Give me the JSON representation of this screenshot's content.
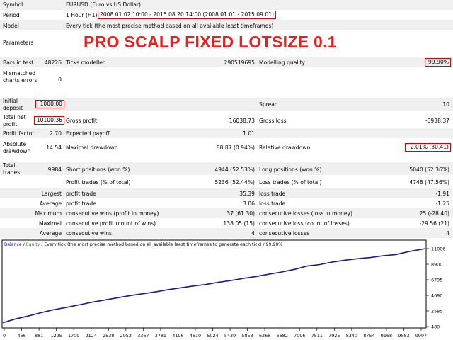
{
  "header": {
    "symbol_label": "Symbol",
    "symbol_value": "EURUSD (Euro vs US Dollar)",
    "period_label": "Period",
    "period_value": "1 Hour (H1)",
    "period_range": "2008.01.02 10:00 - 2015.08.20 14:00 (2008.01.01 - 2015.09.01)",
    "model_label": "Model",
    "model_value": "Every tick (the most precise method based on all available least timeframes)",
    "parameters_label": "Parameters",
    "banner": "PRO SCALP FIXED LOTSIZE 0.1"
  },
  "stats": {
    "bars_label": "Bars in test",
    "bars_value": "48226",
    "ticks_label": "Ticks modelled",
    "ticks_value": "290519695",
    "quality_label": "Modelling quality",
    "quality_value": "99.90%",
    "mismatch_label": "Mismatched charts errors",
    "mismatch_value": "0",
    "deposit_label": "Initial deposit",
    "deposit_value": "1000.00",
    "spread_label": "Spread",
    "spread_value": "10",
    "net_label": "Total net profit",
    "net_value": "10100.36",
    "gross_profit_label": "Gross profit",
    "gross_profit_value": "16038.73",
    "gross_loss_label": "Gross loss",
    "gross_loss_value": "-5938.37",
    "pf_label": "Profit factor",
    "pf_value": "2.70",
    "payoff_label": "Expected payoff",
    "payoff_value": "1.01",
    "abs_dd_label": "Absolute drawdown",
    "abs_dd_value": "14.54",
    "max_dd_label": "Maximal drawdown",
    "max_dd_value": "88.87 (0.94%)",
    "rel_dd_label": "Relative drawdown",
    "rel_dd_value": "2.01% (30.41)",
    "trades_label": "Total trades",
    "trades_value": "9984",
    "short_label": "Short positions (won %)",
    "short_value": "4944 (52.53%)",
    "long_label": "Long positions (won %)",
    "long_value": "5040 (52.36%)",
    "profit_trades_label": "Profit trades (% of total)",
    "profit_trades_value": "5236 (52.44%)",
    "loss_trades_label": "Loss trades (% of total)",
    "loss_trades_value": "4748 (47.56%)",
    "largest_label": "Largest",
    "largest_profit_label": "profit trade",
    "largest_profit_value": "35.39",
    "largest_loss_label": "loss trade",
    "largest_loss_value": "-1.91",
    "average_label": "Average",
    "average_profit_label": "profit trade",
    "average_profit_value": "3.06",
    "average_loss_label": "loss trade",
    "average_loss_value": "-1.25",
    "maximum_label": "Maximum",
    "max_wins_label": "consecutive wins (profit in money)",
    "max_wins_value": "37 (61.30)",
    "max_losses_label": "consecutive losses (loss in money)",
    "max_losses_value": "25 (-28.40)",
    "maximal_label": "Maximal",
    "maximal_profit_label": "consecutive profit (count of wins)",
    "maximal_profit_value": "138.05 (15)",
    "maximal_loss_label": "consecutive loss (count of losses)",
    "maximal_loss_value": "-29.56 (21)",
    "avg2_label": "Average",
    "avg_wins_label": "consecutive wins",
    "avg_wins_value": "4",
    "avg_losses_label": "consecutive losses",
    "avg_losses_value": "4"
  },
  "chart_data": {
    "type": "line",
    "legend": {
      "balance": "Balance",
      "sep": " / ",
      "equity": "Equity",
      "desc": " / Every tick (the most precise method based on all available least timeframes to generate each tick)",
      "quality": " / 99.90%"
    },
    "x_ticks": [
      "0",
      "466",
      "881",
      "1295",
      "1709",
      "2124",
      "2538",
      "2952",
      "3367",
      "3781",
      "4196",
      "4610",
      "5024",
      "5439",
      "5853",
      "6268",
      "6682",
      "7096",
      "7511",
      "7925",
      "8340",
      "8754",
      "9168",
      "9583",
      "9997"
    ],
    "y_ticks": [
      "11006",
      "8900",
      "6795",
      "4690",
      "2585",
      "480"
    ],
    "ylim": [
      480,
      11006
    ],
    "xlim": [
      0,
      9997
    ],
    "series": [
      {
        "name": "Balance",
        "color": "#1a1a8a",
        "x": [
          0,
          300,
          600,
          900,
          1200,
          1500,
          1800,
          2100,
          2400,
          2700,
          3000,
          3300,
          3600,
          3900,
          4200,
          4500,
          4800,
          5100,
          5400,
          5700,
          6000,
          6300,
          6600,
          6900,
          7200,
          7500,
          7800,
          8100,
          8400,
          8700,
          9000,
          9300,
          9600,
          9997
        ],
        "y": [
          1000,
          1500,
          1900,
          2350,
          2750,
          3050,
          3400,
          3750,
          4050,
          4350,
          4650,
          4900,
          5150,
          5450,
          5700,
          5950,
          6150,
          6450,
          6700,
          7000,
          7250,
          7550,
          7850,
          8200,
          8650,
          8850,
          9200,
          9450,
          9650,
          9800,
          10050,
          10200,
          10600,
          11006
        ]
      }
    ]
  }
}
